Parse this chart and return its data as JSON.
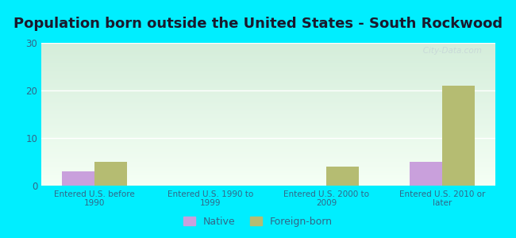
{
  "title": "Population born outside the United States - South Rockwood",
  "categories": [
    "Entered U.S. before\n1990",
    "Entered U.S. 1990 to\n1999",
    "Entered U.S. 2000 to\n2009",
    "Entered U.S. 2010 or\nlater"
  ],
  "native_values": [
    3,
    0,
    0,
    5
  ],
  "foreign_values": [
    5,
    0,
    4,
    21
  ],
  "native_color": "#c9a0dc",
  "foreign_color": "#b5bc72",
  "ylim": [
    0,
    30
  ],
  "yticks": [
    0,
    10,
    20,
    30
  ],
  "bg_color": "#00eeff",
  "grad_top_color": "#d4edda",
  "grad_bottom_color": "#f5fff5",
  "bar_width": 0.28,
  "watermark": "   City-Data.com",
  "title_fontsize": 13,
  "tick_label_color": "#336688",
  "legend_native": "Native",
  "legend_foreign": "Foreign-born"
}
